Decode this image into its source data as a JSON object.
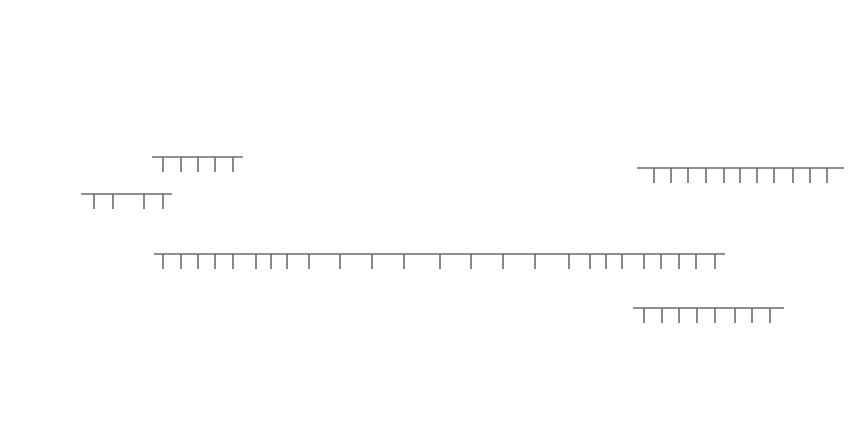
{
  "style": {
    "background": "#ffffff",
    "stroke": "#6b6b6b"
  },
  "groups": [
    {
      "name": "tick-group-1",
      "tick_count": 5
    },
    {
      "name": "tick-group-2",
      "tick_count": 4
    },
    {
      "name": "tick-group-3",
      "tick_count": 28
    },
    {
      "name": "tick-group-4",
      "tick_count": 11
    },
    {
      "name": "tick-group-5",
      "tick_count": 9
    }
  ]
}
